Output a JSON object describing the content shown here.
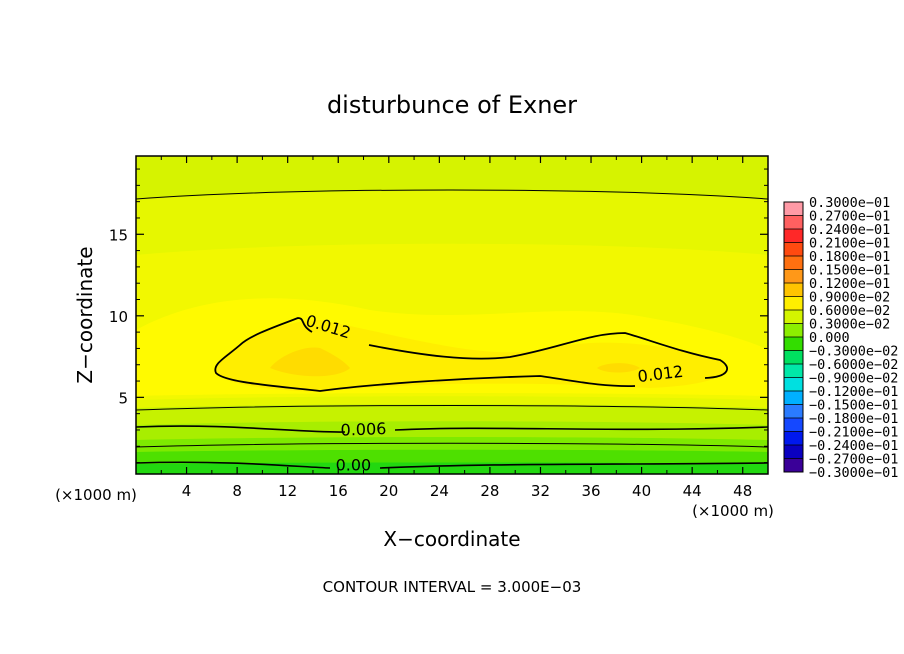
{
  "chart_data": {
    "type": "contour",
    "title": "disturbunce of Exner",
    "xlabel": "X−coordinate",
    "ylabel": "Z−coordinate",
    "x_unit_label_left": "(×1000 m)",
    "x_unit_label_right": "(×1000 m)",
    "footer": "CONTOUR INTERVAL = 3.000E−03",
    "xlim": [
      0,
      50
    ],
    "ylim": [
      0.3,
      19.8
    ],
    "x_ticks": [
      4,
      8,
      12,
      16,
      20,
      24,
      28,
      32,
      36,
      40,
      44,
      48
    ],
    "y_ticks": [
      5,
      10,
      15
    ],
    "contour_labels": [
      {
        "text": "0.012",
        "x": 15.2,
        "y": 9.0
      },
      {
        "text": "0.012",
        "x": 41.5,
        "y": 6.1
      },
      {
        "text": "0.006",
        "x": 18.0,
        "y": 2.7
      },
      {
        "text": "0.00",
        "x": 17.2,
        "y": 0.5
      }
    ],
    "legend_labels": [
      "0.3000e−01",
      "0.2700e−01",
      "0.2400e−01",
      "0.2100e−01",
      "0.1800e−01",
      "0.1500e−01",
      "0.1200e−01",
      "0.9000e−02",
      "0.6000e−02",
      "0.3000e−02",
      "0.000",
      "−0.3000e−02",
      "−0.6000e−02",
      "−0.9000e−02",
      "−0.1200e−01",
      "−0.1500e−01",
      "−0.1800e−01",
      "−0.2100e−01",
      "−0.2400e−01",
      "−0.2700e−01",
      "−0.3000e−01"
    ],
    "legend_colors": [
      "#ff9aa6",
      "#ff6060",
      "#ff2828",
      "#ff4a10",
      "#ff7010",
      "#ff9818",
      "#ffc400",
      "#ffee00",
      "#d4f500",
      "#8cee00",
      "#33dd00",
      "#00e060",
      "#00e8a8",
      "#00e0e0",
      "#00b0ff",
      "#2a7bff",
      "#1548ff",
      "#0018ee",
      "#0a00c0",
      "#3a0098"
    ]
  }
}
